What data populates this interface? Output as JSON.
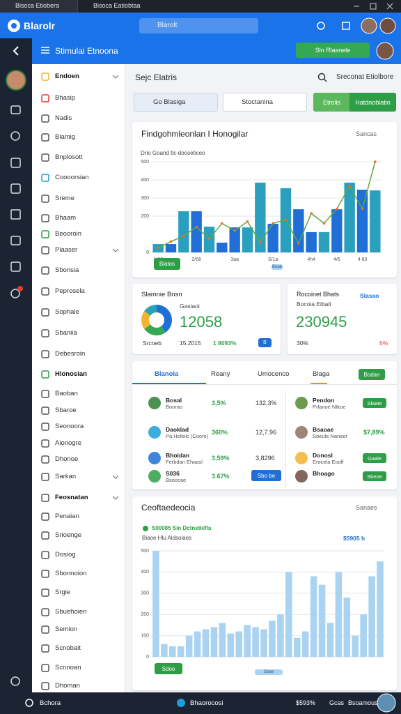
{
  "browser": {
    "tabs": [
      "Bisoca Etiobera",
      "Bisoca Eatiobtaa"
    ]
  },
  "app_header": {
    "logo": "Blarolr",
    "search": "Blarolt"
  },
  "topbar": {
    "title": "Stimulai Etnoona",
    "button": "Sln Rlasnele"
  },
  "sidebar": {
    "items": [
      "Endoen",
      "Bhasip",
      "Nadis",
      "Blamig",
      "Bnplosott",
      "Coooorsian",
      "Sreme",
      "Bhaam",
      "Beooroin",
      "Plaaser",
      "Sbonsia",
      "Peprosela",
      "Sophale",
      "Sbaniia",
      "Debesroin",
      "Hlonosian",
      "Baoban",
      "Sbaroe",
      "Seonoora",
      "Aionogre",
      "Dhonoe",
      "Sarkan",
      "Feosnatan",
      "Penaian",
      "Srioenge",
      "Dosiog",
      "Sbonnoion",
      "Srgie",
      "Sbuehoien",
      "Semion",
      "Scnobait",
      "Scnnoan",
      "Dhoman"
    ]
  },
  "main": {
    "heading": "Sejc Elatris",
    "search": "Sreconat Etiolbore",
    "filter1": "Go Blasiga",
    "filter2": "Stoctanina",
    "button1": "Etrolis",
    "button2": "Hatdnoblatin"
  },
  "chart1": {
    "type": "bar",
    "title": "Findgohmleonlan I Honogilar",
    "menu": "Sancas",
    "note": "Drio Goand tlc-dooseticeo",
    "button": "Blatos",
    "badge": "Boae",
    "categories": [
      "1 86",
      null,
      null,
      "2/66",
      null,
      null,
      "3aa",
      null,
      null,
      "S/1a",
      null,
      null,
      "4h4",
      null,
      "4/6",
      null,
      "4 83",
      null
    ],
    "ylim": [
      0,
      500
    ],
    "yticks": [
      0,
      200,
      300,
      400,
      500
    ],
    "grid": true,
    "series": [
      {
        "type": "bar",
        "colors": [
          "#2a9fbe",
          "#1f6fd6",
          "#2a9fbe",
          "#1f6fd6",
          "#2a9fbe",
          "#1f6fd6",
          "#1f6fd6",
          "#2a9fbe",
          "#2a9fbe",
          "#1f6fd6",
          "#2a9fbe",
          "#1f6fd6",
          "#1f6fd6",
          "#2a9fbe",
          "#1f6fd6",
          "#2a9fbe",
          "#1f6fd6",
          "#2a9fbe"
        ],
        "values": [
          46,
          46,
          227,
          227,
          142,
          54,
          138,
          138,
          385,
          158,
          354,
          238,
          112,
          112,
          238,
          385,
          346,
          342
        ]
      },
      {
        "type": "line",
        "color": "#5faa3c",
        "marker_color": "#e8702a",
        "values": [
          25,
          60,
          90,
          140,
          75,
          160,
          120,
          170,
          55,
          160,
          180,
          50,
          215,
          160,
          240,
          365,
          240,
          500
        ]
      }
    ]
  },
  "stats": [
    {
      "title": "Slamnie Bnsn",
      "sub": "Gasiaoi",
      "value": "12058",
      "foot": [
        "Srcoeb",
        "15.2015",
        "1 8093%"
      ],
      "button": "B",
      "donut": {
        "values": [
          40,
          25,
          20,
          15
        ],
        "colors": [
          "#1f6fd6",
          "#34a853",
          "#f2b233",
          "#2aa3b8"
        ]
      }
    },
    {
      "title": "Rocoinet Bhats",
      "sub": "Bocoia Eibalt",
      "link": "Slasao",
      "value": "230945",
      "foot": [
        "30%",
        "6%"
      ]
    }
  ],
  "list": {
    "tabs": [
      "Blanola",
      "Reany",
      "Umocenco",
      "Blaga"
    ],
    "button": "Bodan",
    "left": [
      {
        "name": "Bosal",
        "sub": "Boorao",
        "pct": "3,5%",
        "value": "132,3%"
      },
      {
        "name": "Daoklad",
        "sub": "Pa Hsltoic (Coom)",
        "pct": "360%",
        "value": "12,7.96"
      },
      {
        "name": "Bhoidan",
        "sub": "Ferbdan Ehaasl",
        "pct": "3,59%",
        "value": "3,8296"
      },
      {
        "name": "S036",
        "sub": "Bsoocae",
        "pct": "3.67%",
        "value": "Sbo be"
      }
    ],
    "right": [
      {
        "name": "Pendon",
        "sub": "Prlanoe Ntkoe",
        "action": "Slaaie"
      },
      {
        "name": "Bsaoae",
        "sub": "Soeule Naneor",
        "action": "$7,89%"
      },
      {
        "name": "Donosl",
        "sub": "Erocela Eoolf",
        "action": "Gaale"
      },
      {
        "name": "Bhoago",
        "sub": "",
        "action": "Sbeoe"
      }
    ]
  },
  "chart2": {
    "type": "bar",
    "title": "Ceoftaedeocia",
    "menu": "Sanaes",
    "legend": "S00085 Sin Dctnetkifla",
    "sub": "Biaoe Hlu Aldsolaes",
    "total": "$5905 h",
    "button": "Sdoo",
    "badge": "Sooe",
    "color": "#a9d3f0",
    "ylim": [
      0,
      500
    ],
    "yticks": [
      0,
      100,
      200,
      300,
      400,
      500
    ],
    "grid": true,
    "values": [
      500,
      60,
      50,
      50,
      100,
      120,
      130,
      140,
      160,
      110,
      120,
      150,
      140,
      130,
      170,
      200,
      400,
      90,
      120,
      380,
      340,
      160,
      400,
      280,
      100,
      200,
      380,
      450
    ]
  },
  "footer": {
    "left": "Bchora",
    "center": "Bhaorocosi",
    "right": [
      "$593%",
      "Gcas",
      "Bsoamous"
    ]
  }
}
